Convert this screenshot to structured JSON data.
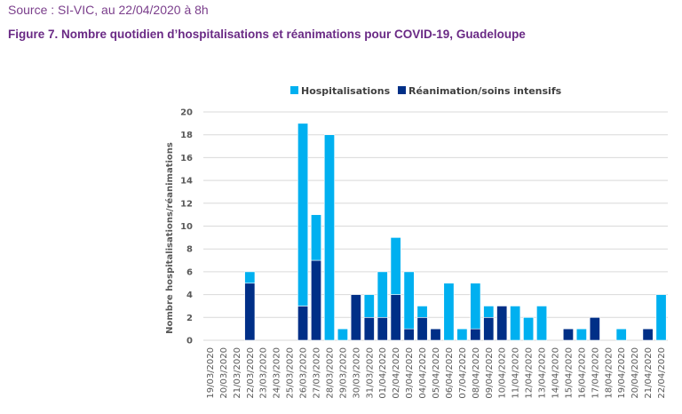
{
  "header": {
    "source": "Source : SI-VIC, au 22/04/2020 à 8h",
    "figure_title": "Figure 7. Nombre quotidien d’hospitalisations et réanimations pour COVID-19, Guadeloupe"
  },
  "colors": {
    "hospitalisations": "#00b0f0",
    "reanimation": "#002f87",
    "grid": "#d9d9d9"
  },
  "chart_data": {
    "type": "bar",
    "stacked": true,
    "title": "",
    "xlabel": "",
    "ylabel": "Nombre hospitalisations/réanimations",
    "ylim": [
      0,
      20
    ],
    "yticks": [
      0,
      2,
      4,
      6,
      8,
      10,
      12,
      14,
      16,
      18,
      20
    ],
    "grid": true,
    "legend_position": "top",
    "categories": [
      "19/03/2020",
      "20/03/2020",
      "21/03/2020",
      "22/03/2020",
      "23/03/2020",
      "24/03/2020",
      "25/03/2020",
      "26/03/2020",
      "27/03/2020",
      "28/03/2020",
      "29/03/2020",
      "30/03/2020",
      "31/03/2020",
      "01/04/2020",
      "02/04/2020",
      "03/04/2020",
      "04/04/2020",
      "05/04/2020",
      "06/04/2020",
      "07/04/2020",
      "08/04/2020",
      "09/04/2020",
      "10/04/2020",
      "11/04/2020",
      "12/04/2020",
      "13/04/2020",
      "14/04/2020",
      "15/04/2020",
      "16/04/2020",
      "17/04/2020",
      "18/04/2020",
      "19/04/2020",
      "20/04/2020",
      "21/04/2020",
      "22/04/2020"
    ],
    "series": [
      {
        "name": "Réanimation/soins intensifs",
        "values": [
          0,
          0,
          0,
          5,
          0,
          0,
          0,
          3,
          7,
          0,
          0,
          4,
          2,
          2,
          4,
          1,
          2,
          1,
          0,
          0,
          1,
          2,
          3,
          0,
          0,
          0,
          0,
          1,
          0,
          2,
          0,
          0,
          0,
          1,
          0
        ]
      },
      {
        "name": "Hospitalisations",
        "values": [
          0,
          0,
          0,
          1,
          0,
          0,
          0,
          16,
          4,
          18,
          1,
          0,
          2,
          4,
          5,
          5,
          1,
          0,
          5,
          1,
          4,
          1,
          0,
          3,
          2,
          3,
          0,
          0,
          1,
          0,
          0,
          1,
          0,
          0,
          4
        ]
      }
    ]
  }
}
